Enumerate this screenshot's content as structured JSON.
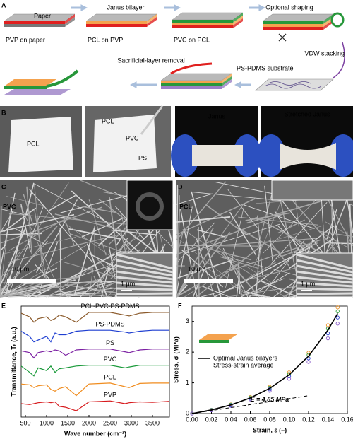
{
  "panel_labels": [
    "A",
    "B",
    "C",
    "D",
    "E",
    "F"
  ],
  "diagram": {
    "paper_label": "Paper",
    "step_labels": [
      "PVP on paper",
      "PCL on PVP",
      "PVC on PCL"
    ],
    "arrows": [
      "Janus bilayer",
      "Optional shaping",
      "VDW stacking",
      "Sacrificial-layer removal"
    ],
    "substrate": "PS-PDMS substrate"
  },
  "photos": {
    "left": "PCL",
    "right": [
      "PCL",
      "PVC",
      "PS"
    ],
    "janus": "Janus",
    "stretched": "Stretched Janus"
  },
  "sem": [
    {
      "label": "PVC",
      "scale": "10 μm",
      "inset_scale": "1 μm"
    },
    {
      "label": "PCL",
      "scale": "10 μm",
      "inset_scale": "1 μm"
    }
  ],
  "chart_data": [
    {
      "type": "line",
      "xlabel": "Wave number (cm⁻¹)",
      "ylabel": "Transmittance, Tₜ (a.u.)",
      "xlim": [
        400,
        3900
      ],
      "ylim": [
        0,
        6.2
      ],
      "xticks": [
        500,
        1000,
        1500,
        2000,
        2500,
        3000,
        3500
      ],
      "x": [
        400,
        600,
        700,
        800,
        1000,
        1100,
        1200,
        1300,
        1450,
        1700,
        2000,
        2500,
        2850,
        2950,
        3200,
        3500,
        3900
      ],
      "series": [
        {
          "name": "PCL-PVC-PS-PDMS",
          "color": "#8b5a2b",
          "values": [
            5.8,
            5.6,
            5.3,
            5.5,
            5.6,
            5.4,
            5.5,
            5.7,
            5.6,
            5.3,
            5.85,
            5.85,
            5.7,
            5.65,
            5.8,
            5.85,
            5.85
          ]
        },
        {
          "name": "PS-PDMS",
          "color": "#1f3fd1",
          "values": [
            4.8,
            4.5,
            4.2,
            4.3,
            4.5,
            4.2,
            4.7,
            4.6,
            4.6,
            4.8,
            4.85,
            4.85,
            4.75,
            4.7,
            4.8,
            4.85,
            4.85
          ]
        },
        {
          "name": "PS",
          "color": "#7b1fa2",
          "values": [
            3.7,
            3.6,
            3.3,
            3.6,
            3.7,
            3.65,
            3.75,
            3.7,
            3.45,
            3.75,
            3.8,
            3.8,
            3.65,
            3.6,
            3.75,
            3.8,
            3.8
          ]
        },
        {
          "name": "PVC",
          "color": "#1a9a3a",
          "values": [
            2.85,
            2.5,
            2.3,
            2.75,
            2.6,
            2.85,
            2.5,
            2.7,
            2.75,
            2.85,
            2.9,
            2.9,
            2.75,
            2.8,
            2.9,
            2.9,
            2.9
          ]
        },
        {
          "name": "PCL",
          "color": "#f08c1e",
          "values": [
            1.85,
            1.8,
            1.65,
            1.75,
            1.8,
            1.55,
            1.45,
            1.6,
            1.7,
            1.2,
            1.85,
            1.9,
            1.7,
            1.65,
            1.88,
            1.9,
            1.9
          ]
        },
        {
          "name": "PVP",
          "color": "#d7191c",
          "values": [
            0.75,
            0.7,
            0.75,
            0.8,
            0.85,
            0.8,
            0.85,
            0.6,
            0.55,
            0.35,
            0.85,
            0.9,
            0.75,
            0.8,
            0.85,
            0.82,
            0.88
          ]
        }
      ]
    },
    {
      "type": "scatter",
      "xlabel": "Strain, ε (–)",
      "ylabel": "Stress, σ (MPa)",
      "xlim": [
        0,
        0.16
      ],
      "ylim": [
        0,
        3.5
      ],
      "xticks": [
        {
          "value": 0,
          "label": "0.00"
        },
        {
          "value": 0.02,
          "label": "0.02"
        },
        {
          "value": 0.04,
          "label": "0.04"
        },
        {
          "value": 0.06,
          "label": "0.06"
        },
        {
          "value": 0.08,
          "label": "0.08"
        },
        {
          "value": 0.1,
          "label": "0.10"
        },
        {
          "value": 0.12,
          "label": "0.12"
        },
        {
          "value": 0.14,
          "label": "0.14"
        },
        {
          "value": 0.16,
          "label": "0.16"
        }
      ],
      "yticks": [
        0,
        1,
        2,
        3
      ],
      "x": [
        0,
        0.02,
        0.04,
        0.06,
        0.08,
        0.1,
        0.12,
        0.14,
        0.15
      ],
      "series": [
        {
          "name": "Optimal Janus bilayers",
          "color": "#000000",
          "values": [
            0,
            0.12,
            0.28,
            0.51,
            0.82,
            1.26,
            1.87,
            2.72,
            3.26
          ]
        }
      ],
      "legend_subtitle": "Stress-strain average",
      "samples": [
        {
          "color": "#e8912a",
          "values": [
            0,
            0.12,
            0.3,
            0.54,
            0.87,
            1.34,
            1.98,
            2.88,
            3.46
          ]
        },
        {
          "color": "#2e9e3e",
          "values": [
            0,
            0.12,
            0.29,
            0.52,
            0.84,
            1.29,
            1.91,
            2.77,
            3.33
          ]
        },
        {
          "color": "#2a3fd0",
          "values": [
            0,
            0.11,
            0.27,
            0.49,
            0.79,
            1.21,
            1.8,
            2.61,
            3.13
          ]
        },
        {
          "color": "#8a5cc8",
          "values": [
            0,
            0.11,
            0.25,
            0.46,
            0.74,
            1.13,
            1.68,
            2.45,
            2.93
          ]
        }
      ],
      "modulus": {
        "value": 4.85,
        "label": "E = 4.85 MPa"
      }
    }
  ]
}
